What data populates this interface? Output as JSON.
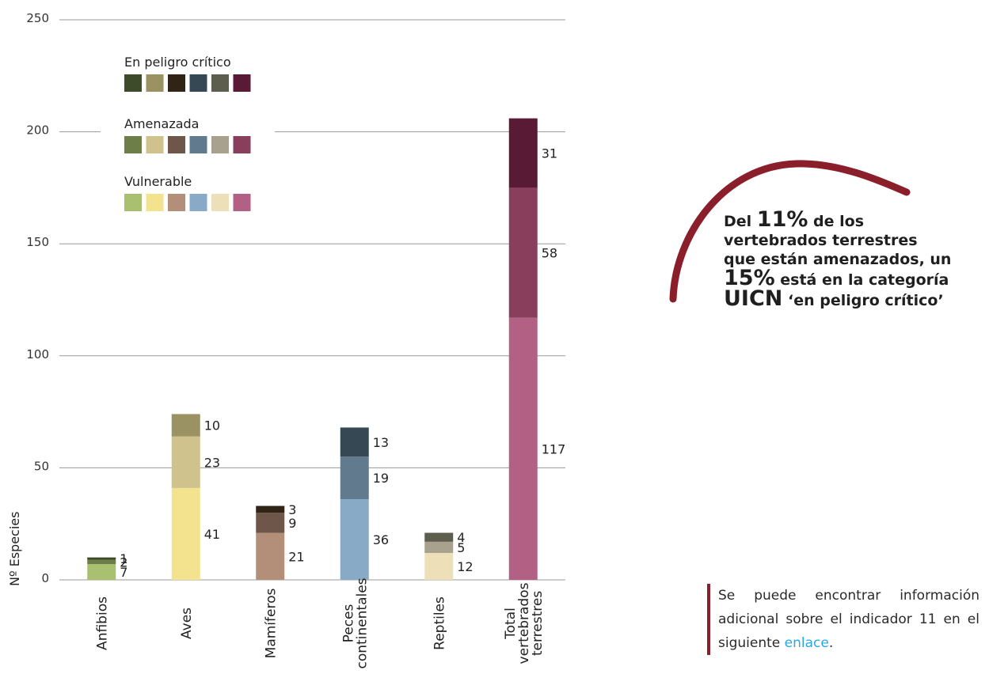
{
  "chart_data": {
    "type": "bar",
    "stacked": true,
    "ylabel": "Nº Especies",
    "ylim": [
      0,
      250
    ],
    "yticks": [
      0,
      50,
      100,
      150,
      200,
      250
    ],
    "grid": true,
    "legend_position": "top-left",
    "categories": [
      {
        "label_lines": [
          "Anfibios"
        ]
      },
      {
        "label_lines": [
          "Aves"
        ]
      },
      {
        "label_lines": [
          "Mamíferos"
        ]
      },
      {
        "label_lines": [
          "Peces",
          "continentales"
        ]
      },
      {
        "label_lines": [
          "Reptiles"
        ]
      },
      {
        "label_lines": [
          "Total",
          "vertebrados",
          "terrestres"
        ]
      }
    ],
    "series": [
      {
        "name": "Vulnerable",
        "values": [
          7,
          41,
          21,
          36,
          12,
          117
        ]
      },
      {
        "name": "Amenazada",
        "values": [
          2,
          23,
          9,
          19,
          5,
          58
        ]
      },
      {
        "name": "En peligro crítico",
        "values": [
          1,
          10,
          3,
          13,
          4,
          31
        ]
      }
    ],
    "colors": {
      "Vulnerable": [
        "#a9c070",
        "#f3e38f",
        "#b38f79",
        "#89aac6",
        "#ede0b9",
        "#b26185"
      ],
      "Amenazada": [
        "#6d7e49",
        "#cfc28c",
        "#6e574a",
        "#617a8e",
        "#a7a18d",
        "#893f5c"
      ],
      "En peligro crítico": [
        "#3e4b2a",
        "#9a9262",
        "#302417",
        "#374855",
        "#5d5e4e",
        "#581a34"
      ]
    }
  },
  "callout": {
    "line1_pre": "Del ",
    "line1_big": "11%",
    "line1_post": " de los",
    "line2": "vertebrados terrestres",
    "line3": "que están amenazados, un",
    "line4_big": "15%",
    "line4_post": " está en la categoría",
    "line5_big": "UICN",
    "line5_post": " ‘en peligro crítico’",
    "arc_color": "#8a1f2b"
  },
  "note": {
    "text_before": "Se puede encontrar información adicional sobre el indicador 11 en el siguiente ",
    "link_text": "enlace",
    "text_after": ".",
    "link_color": "#29a8e0"
  }
}
